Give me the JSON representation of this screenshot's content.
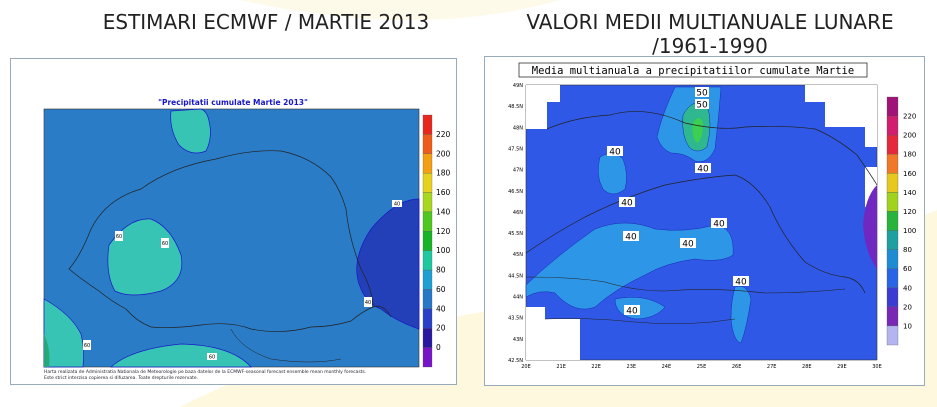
{
  "titles": {
    "left": "ESTIMARI ECMWF / MARTIE 2013",
    "right_line1": "VALORI MEDII MULTIANUALE LUNARE",
    "right_line2": "/1961-1990"
  },
  "left_map": {
    "title": "\"Precipitatii cumulate Martie 2013\"",
    "contour_labels": [
      "40",
      "60",
      "60",
      "40",
      "60",
      "60",
      "60"
    ],
    "legend_ticks": [
      "220",
      "200",
      "180",
      "160",
      "140",
      "120",
      "100",
      "80",
      "60",
      "40",
      "20",
      "0"
    ],
    "legend_colors": [
      "#e8281e",
      "#f05a1a",
      "#f2a012",
      "#e6d21e",
      "#a8d81e",
      "#4cc81e",
      "#18b428",
      "#1ec8a0",
      "#1ea0d2",
      "#2878c8",
      "#2840c8",
      "#2818a0",
      "#7814c8"
    ],
    "note_lines": [
      "Harta realizata de Administratia Nationala de Meteorologie pe baza datelor de la ECMWF-seasonal forecast ensemble mean monthly forecasts.",
      "Este strict interzisa copierea si difuzarea. Toate drepturile rezervate."
    ]
  },
  "right_map": {
    "title": "Media multianuala a precipitatiilor cumulate Martie",
    "contour_labels": [
      "50",
      "50",
      "40",
      "40",
      "40",
      "40",
      "40",
      "40",
      "40",
      "40"
    ],
    "lat_labels": [
      "49N",
      "48.5N",
      "48N",
      "47.5N",
      "47N",
      "46.5N",
      "46N",
      "45.5N",
      "45N",
      "44.5N",
      "44N",
      "43.5N",
      "43N",
      "42.5N"
    ],
    "lon_labels": [
      "20E",
      "21E",
      "22E",
      "23E",
      "24E",
      "25E",
      "26E",
      "27E",
      "28E",
      "29E",
      "30E"
    ],
    "legend_ticks": [
      "220",
      "200",
      "180",
      "160",
      "140",
      "120",
      "100",
      "80",
      "60",
      "40",
      "20",
      "10"
    ],
    "legend_colors": [
      "#a01478",
      "#d21e6e",
      "#e6283c",
      "#f07828",
      "#e6c81e",
      "#a0d21e",
      "#28b43c",
      "#1ea0a0",
      "#1e8cd2",
      "#2864e6",
      "#3c3cd2",
      "#7828b4",
      "#b4b4f0"
    ]
  }
}
